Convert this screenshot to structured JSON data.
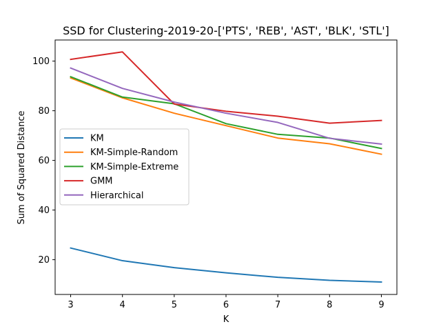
{
  "chart_data": {
    "type": "line",
    "title": "SSD for Clustering-2019-20-['PTS', 'REB', 'AST', 'BLK', 'STL']",
    "xlabel": "K",
    "ylabel": "Sum of Squared Distance",
    "x": [
      3,
      4,
      5,
      6,
      7,
      8,
      9
    ],
    "xlim": [
      2.7,
      9.3
    ],
    "ylim": [
      6.0,
      108.5
    ],
    "xticks": [
      "3",
      "4",
      "5",
      "6",
      "7",
      "8",
      "9"
    ],
    "yticks": [
      "20",
      "40",
      "60",
      "80",
      "100"
    ],
    "ytick_values": [
      20,
      40,
      60,
      80,
      100
    ],
    "grid": false,
    "legend_position": "center-left",
    "series": [
      {
        "name": "KM",
        "color": "#1f77b4",
        "values": [
          24.7,
          19.6,
          16.8,
          14.7,
          12.9,
          11.7,
          11.0
        ]
      },
      {
        "name": "KM-Simple-Random",
        "color": "#ff7f0e",
        "values": [
          93.2,
          85.2,
          79.0,
          74.0,
          69.0,
          66.7,
          62.5
        ]
      },
      {
        "name": "KM-Simple-Extreme",
        "color": "#2ca02c",
        "values": [
          93.7,
          85.5,
          82.8,
          74.8,
          70.5,
          69.0,
          64.8
        ]
      },
      {
        "name": "GMM",
        "color": "#d62728",
        "values": [
          100.7,
          103.7,
          82.7,
          79.8,
          77.8,
          75.0,
          76.1
        ]
      },
      {
        "name": "Hierarchical",
        "color": "#9467bd",
        "values": [
          97.2,
          89.0,
          83.5,
          79.0,
          75.3,
          68.9,
          66.6
        ]
      }
    ]
  }
}
